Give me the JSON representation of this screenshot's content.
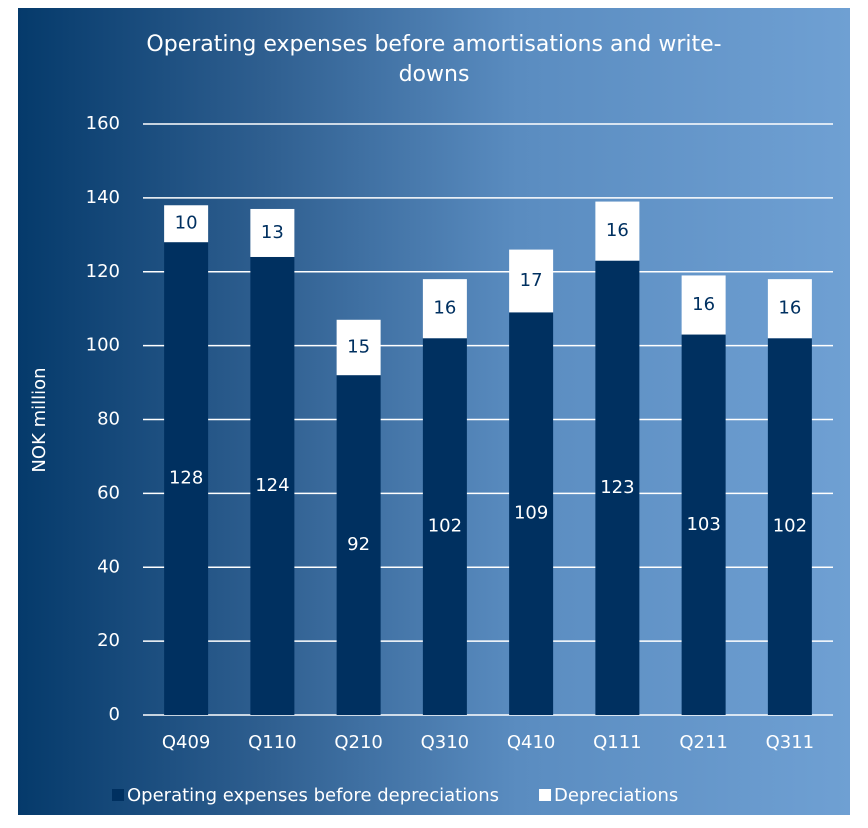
{
  "chart_data": {
    "type": "stacked_bar",
    "title": "Operating expenses before amortisations and write-downs",
    "y_label": "NOK million",
    "categories": [
      "Q409",
      "Q110",
      "Q210",
      "Q310",
      "Q410",
      "Q111",
      "Q211",
      "Q311"
    ],
    "series": [
      {
        "name": "Operating expenses before depreciations",
        "color": "#003060",
        "label_color": "#ffffff",
        "values": [
          128,
          124,
          92,
          102,
          109,
          123,
          103,
          102
        ]
      },
      {
        "name": "Depreciations",
        "color": "#ffffff",
        "label_color": "#003060",
        "values": [
          10,
          13,
          15,
          16,
          17,
          16,
          16,
          16
        ]
      }
    ],
    "ylim": [
      0,
      160
    ],
    "yticks": [
      0,
      20,
      40,
      60,
      80,
      100,
      120,
      140,
      160
    ],
    "grid": true
  }
}
